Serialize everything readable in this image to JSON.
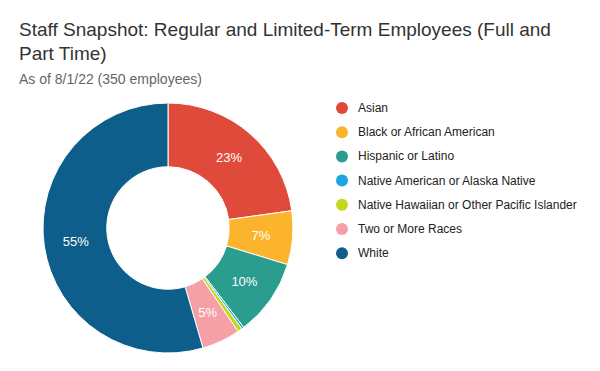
{
  "chart_data": {
    "type": "donut",
    "title": "Staff Snapshot: Regular and Limited-Term Employees (Full and Part Time)",
    "subtitle": "As of 8/1/22 (350 employees)",
    "categories": [
      "Asian",
      "Black or African American",
      "Hispanic or Latino",
      "Native American or Alaska Native",
      "Native Hawaiian or Other Pacific Islander",
      "Two or More Races",
      "White"
    ],
    "values": [
      23,
      7,
      10,
      0.3,
      0.6,
      5,
      55
    ],
    "value_labels": [
      "23%",
      "7%",
      "10%",
      null,
      null,
      "5%",
      "55%"
    ],
    "colors": [
      "#e04a3b",
      "#fbb42c",
      "#2a9d8f",
      "#1aa7e0",
      "#c5d71a",
      "#f4a0a6",
      "#0e5e8c"
    ],
    "data_labels": true,
    "legend": "right"
  }
}
